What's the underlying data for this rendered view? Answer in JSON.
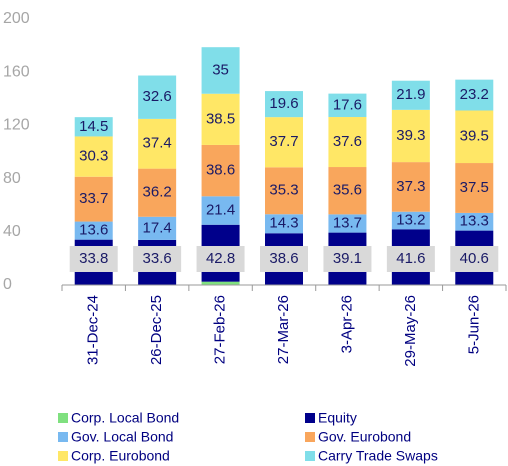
{
  "chart_data": {
    "type": "bar",
    "stacked": true,
    "categories": [
      "31-Dec-24",
      "26-Dec-25",
      "27-Feb-26",
      "27-Mar-26",
      "3-Apr-26",
      "29-May-26",
      "5-Jun-26"
    ],
    "series": [
      {
        "name": "Corp. Local Bond",
        "color": "#7fe07f",
        "values": [
          0.3,
          0.3,
          2.5,
          0.3,
          0.3,
          0.3,
          0.3
        ]
      },
      {
        "name": "Equity",
        "color": "#00008b",
        "values": [
          33.8,
          33.6,
          42.8,
          38.6,
          39.1,
          41.6,
          40.6
        ]
      },
      {
        "name": "Gov. Local Bond",
        "color": "#78b9f0",
        "values": [
          13.6,
          17.4,
          21.4,
          14.3,
          13.7,
          13.2,
          13.3
        ]
      },
      {
        "name": "Gov. Eurobond",
        "color": "#f9a65c",
        "values": [
          33.7,
          36.2,
          38.6,
          35.3,
          35.6,
          37.3,
          37.5
        ]
      },
      {
        "name": "Corp. Eurobond",
        "color": "#ffe766",
        "values": [
          30.3,
          37.4,
          38.5,
          37.7,
          37.6,
          39.3,
          39.5
        ]
      },
      {
        "name": "Carry Trade Swaps",
        "color": "#80dee9",
        "values": [
          14.5,
          32.6,
          35.0,
          19.6,
          17.6,
          21.9,
          23.2
        ]
      }
    ],
    "ylim": [
      0,
      200
    ],
    "yticks": [
      0,
      40,
      80,
      120,
      160,
      200
    ],
    "grid": false
  }
}
